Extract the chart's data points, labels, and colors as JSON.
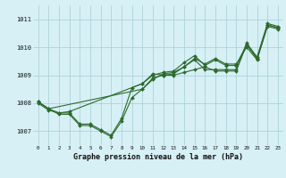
{
  "title": "Graphe pression niveau de la mer (hPa)",
  "background_color": "#d6f0f5",
  "line_color": "#2d6a2d",
  "xlim": [
    -0.5,
    23.5
  ],
  "ylim": [
    1006.5,
    1011.5
  ],
  "yticks": [
    1007,
    1008,
    1009,
    1010,
    1011
  ],
  "xticks": [
    0,
    1,
    2,
    3,
    4,
    5,
    6,
    7,
    8,
    9,
    10,
    11,
    12,
    13,
    14,
    15,
    16,
    17,
    18,
    19,
    20,
    21,
    22,
    23
  ],
  "series": [
    {
      "x": [
        0,
        1,
        2,
        3,
        4,
        5,
        6,
        7,
        8,
        9,
        10,
        11,
        12,
        13,
        14,
        15,
        16,
        17,
        18,
        19,
        20,
        21,
        22,
        23
      ],
      "y": [
        1008.05,
        1007.8,
        1007.6,
        1007.6,
        1007.2,
        1007.2,
        1007.0,
        1006.8,
        1007.35,
        1008.2,
        1008.5,
        1008.9,
        1009.0,
        1009.0,
        1009.1,
        1009.2,
        1009.3,
        1009.15,
        1009.15,
        1009.15,
        1010.1,
        1009.6,
        1010.8,
        1010.7
      ]
    },
    {
      "x": [
        0,
        1,
        2,
        3,
        4,
        5,
        6,
        7,
        8,
        9,
        10,
        11,
        12,
        13,
        14,
        15,
        16,
        17,
        18,
        19,
        20,
        21,
        22,
        23
      ],
      "y": [
        1008.0,
        1007.75,
        1007.65,
        1007.65,
        1007.25,
        1007.25,
        1007.05,
        1006.85,
        1007.45,
        1008.55,
        1008.7,
        1009.05,
        1009.0,
        1009.05,
        1009.3,
        1009.55,
        1009.2,
        1009.2,
        1009.2,
        1009.2,
        1010.15,
        1009.65,
        1010.85,
        1010.75
      ]
    },
    {
      "x": [
        0,
        1,
        10,
        11,
        12,
        13,
        14,
        15,
        16,
        17,
        18,
        19,
        20,
        21,
        22,
        23
      ],
      "y": [
        1008.05,
        1007.8,
        1008.5,
        1008.85,
        1009.05,
        1009.1,
        1009.3,
        1009.6,
        1009.4,
        1009.6,
        1009.4,
        1009.4,
        1010.0,
        1009.55,
        1010.75,
        1010.65
      ]
    },
    {
      "x": [
        0,
        1,
        2,
        3,
        10,
        11,
        12,
        13,
        14,
        15,
        16,
        17,
        18,
        19,
        20,
        21,
        22,
        23
      ],
      "y": [
        1008.05,
        1007.8,
        1007.65,
        1007.7,
        1008.7,
        1009.0,
        1009.1,
        1009.15,
        1009.45,
        1009.7,
        1009.35,
        1009.55,
        1009.35,
        1009.35,
        1010.1,
        1009.6,
        1010.8,
        1010.7
      ]
    }
  ]
}
